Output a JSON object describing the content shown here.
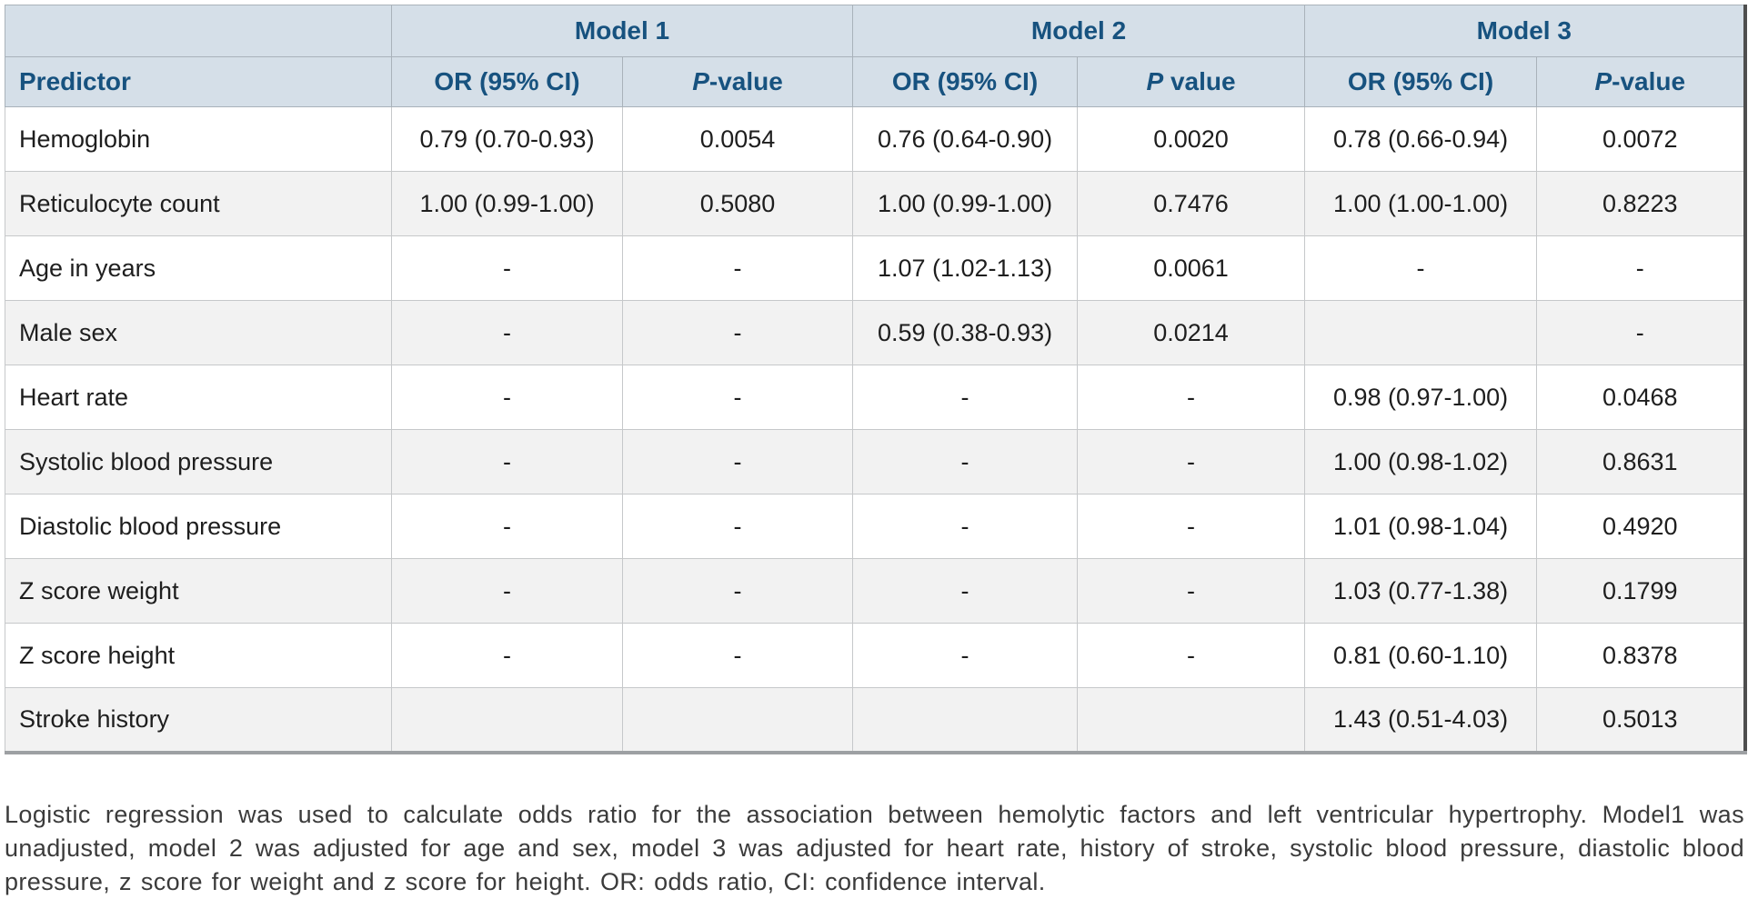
{
  "colors": {
    "header_bg": "#d5dfe8",
    "header_text": "#17527f",
    "alt_row_bg": "#f2f2f2",
    "cell_border": "#c6c8ca",
    "table_bottom_border": "#9da0a3",
    "table_right_border": "#4e4e4e",
    "body_text": "#1e1e1e",
    "footnote_text": "#3b3b3b"
  },
  "table": {
    "corner_label": "",
    "model_headers": [
      "Model 1",
      "Model 2",
      "Model 3"
    ],
    "predictor_header": "Predictor",
    "sub_headers": [
      {
        "or": "OR (95% CI)",
        "p_italic": "P",
        "p_rest": "-value"
      },
      {
        "or": "OR (95% CI)",
        "p_italic": "P",
        "p_rest": " value"
      },
      {
        "or": "OR (95% CI)",
        "p_italic": "P",
        "p_rest": "-value"
      }
    ],
    "rows": [
      {
        "predictor": "Hemoglobin",
        "values": [
          "0.79 (0.70-0.93)",
          "0.0054",
          "0.76 (0.64-0.90)",
          "0.0020",
          "0.78 (0.66-0.94)",
          "0.0072"
        ]
      },
      {
        "predictor": "Reticulocyte count",
        "values": [
          "1.00 (0.99-1.00)",
          "0.5080",
          "1.00 (0.99-1.00)",
          "0.7476",
          "1.00 (1.00-1.00)",
          "0.8223"
        ]
      },
      {
        "predictor": "Age in years",
        "values": [
          "-",
          "-",
          "1.07 (1.02-1.13)",
          "0.0061",
          "-",
          "-"
        ]
      },
      {
        "predictor": "Male sex",
        "values": [
          "-",
          "-",
          "0.59 (0.38-0.93)",
          "0.0214",
          "",
          "-"
        ]
      },
      {
        "predictor": "Heart rate",
        "values": [
          "-",
          "-",
          "-",
          "-",
          "0.98 (0.97-1.00)",
          "0.0468"
        ]
      },
      {
        "predictor": "Systolic blood pressure",
        "values": [
          "-",
          "-",
          "-",
          "-",
          "1.00 (0.98-1.02)",
          "0.8631"
        ]
      },
      {
        "predictor": "Diastolic blood pressure",
        "values": [
          "-",
          "-",
          "-",
          "-",
          "1.01 (0.98-1.04)",
          "0.4920"
        ]
      },
      {
        "predictor": "Z score weight",
        "values": [
          "-",
          "-",
          "-",
          "-",
          "1.03 (0.77-1.38)",
          "0.1799"
        ]
      },
      {
        "predictor": "Z score height",
        "values": [
          "-",
          "-",
          "-",
          "-",
          "0.81 (0.60-1.10)",
          "0.8378"
        ]
      },
      {
        "predictor": "Stroke history",
        "values": [
          "",
          "",
          "",
          "",
          "1.43 (0.51-4.03)",
          "0.5013"
        ]
      }
    ]
  },
  "footnote": "Logistic regression was used to calculate odds ratio for the association between hemolytic factors and left ventricular hypertrophy. Model1 was unadjusted, model 2 was adjusted for age and sex, model 3 was adjusted for heart rate, history of stroke, systolic blood pressure, diastolic blood pressure, z score for weight and z score for height. OR: odds ratio, CI: confidence interval."
}
